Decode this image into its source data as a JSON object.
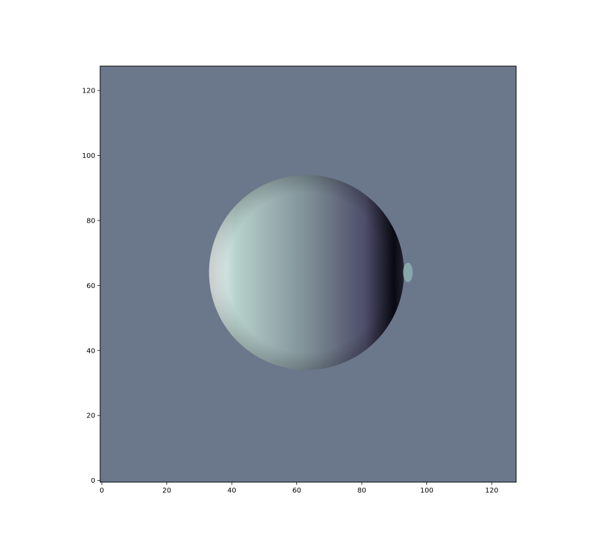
{
  "chart_data": {
    "type": "heatmap",
    "title": "",
    "xlabel": "",
    "ylabel": "",
    "image_shape": [
      128,
      128
    ],
    "xlim": [
      -0.5,
      127.5
    ],
    "ylim": [
      127.5,
      -0.5
    ],
    "y_axis_inverted": true,
    "xticks": [
      0,
      20,
      40,
      60,
      80,
      100,
      120
    ],
    "yticks": [
      0,
      20,
      40,
      60,
      80,
      100,
      120
    ],
    "xtick_labels": [
      "0",
      "20",
      "40",
      "60",
      "80",
      "100",
      "120"
    ],
    "ytick_labels": [
      "0",
      "20",
      "40",
      "60",
      "80",
      "100",
      "120"
    ],
    "colormap": "bone",
    "background_color": "#6b778b",
    "feature": {
      "shape": "disk",
      "center_x": 63,
      "center_y": 64,
      "radius": 30,
      "shading": "horizontal gradient: bright on the left rim, dark on the right rim",
      "bright_color": "#f4fbfa",
      "mid_color": "#7f9097",
      "dark_color": "#0a0a14"
    },
    "grid": false,
    "legend": "none"
  }
}
